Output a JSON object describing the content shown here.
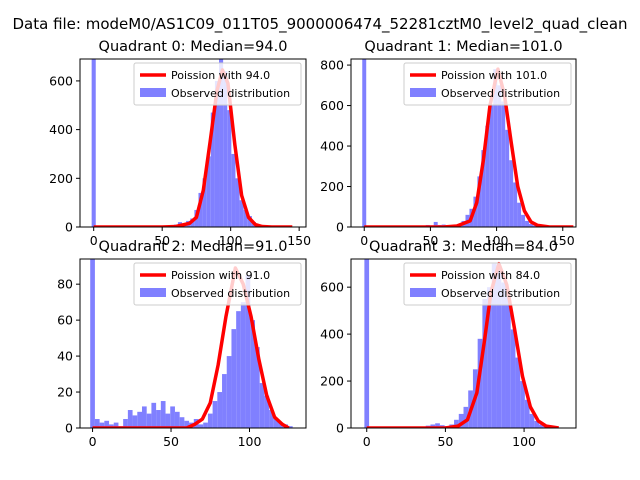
{
  "figure": {
    "suptitle": "Data file: modeM0/AS1C09_011T05_9000006474_52281cztM0_level2_quad_clean",
    "colors": {
      "hist": "#8080ff",
      "fit": "#ff0000",
      "frame": "#000000"
    }
  },
  "chart_data": [
    {
      "type": "bar",
      "title": "Quadrant 0: Median=94.0",
      "median": 94.0,
      "xlim": [
        -10,
        155
      ],
      "ylim": [
        0,
        690
      ],
      "xticks": [
        0,
        50,
        100,
        150
      ],
      "yticks": [
        0,
        200,
        400,
        600
      ],
      "legend": {
        "placement": "top-right",
        "fit_label": "Poission with 94.0",
        "hist_label": "Observed distribution"
      },
      "bin_width": 3,
      "hist": {
        "x": [
          0,
          51,
          54,
          57,
          60,
          63,
          66,
          69,
          72,
          75,
          78,
          81,
          84,
          87,
          90,
          93,
          96,
          99,
          102,
          105,
          108,
          111,
          114,
          117,
          120,
          123,
          126,
          129,
          132
        ],
        "values": [
          690,
          5,
          3,
          6,
          10,
          20,
          10,
          25,
          35,
          70,
          140,
          200,
          290,
          470,
          600,
          690,
          640,
          480,
          300,
          200,
          110,
          70,
          45,
          20,
          10,
          3,
          2,
          1,
          0
        ]
      },
      "fit": {
        "x": [
          0,
          50,
          60,
          70,
          75,
          80,
          85,
          90,
          94,
          98,
          103,
          108,
          113,
          118,
          123,
          130,
          145
        ],
        "values": [
          0,
          0,
          2,
          15,
          40,
          150,
          350,
          560,
          645,
          590,
          340,
          130,
          40,
          10,
          2,
          0,
          0
        ]
      }
    },
    {
      "type": "bar",
      "title": "Quadrant 1: Median=101.0",
      "median": 101.0,
      "xlim": [
        -10,
        160
      ],
      "ylim": [
        0,
        830
      ],
      "xticks": [
        0,
        50,
        100,
        150
      ],
      "yticks": [
        0,
        200,
        400,
        600,
        800
      ],
      "legend": {
        "placement": "top-right",
        "fit_label": "Poission with 101.0",
        "hist_label": "Observed distribution"
      },
      "bin_width": 3,
      "hist": {
        "x": [
          0,
          48,
          51,
          54,
          57,
          60,
          63,
          66,
          69,
          72,
          75,
          78,
          81,
          84,
          87,
          90,
          93,
          96,
          99,
          102,
          105,
          108,
          111,
          114,
          117,
          120,
          123,
          126,
          129,
          132,
          135,
          138
        ],
        "values": [
          830,
          10,
          8,
          25,
          10,
          12,
          5,
          8,
          10,
          15,
          30,
          60,
          90,
          150,
          250,
          380,
          500,
          600,
          780,
          700,
          620,
          480,
          330,
          220,
          120,
          60,
          30,
          15,
          8,
          12,
          5,
          2
        ]
      },
      "fit": {
        "x": [
          0,
          60,
          70,
          80,
          85,
          90,
          95,
          101,
          106,
          111,
          116,
          121,
          126,
          131,
          140,
          158
        ],
        "values": [
          0,
          0,
          5,
          30,
          120,
          330,
          600,
          780,
          650,
          420,
          200,
          80,
          25,
          8,
          0,
          0
        ]
      }
    },
    {
      "type": "bar",
      "title": "Quadrant 2: Median=91.0",
      "median": 91.0,
      "xlim": [
        -8,
        136
      ],
      "ylim": [
        0,
        94
      ],
      "xticks": [
        0,
        50,
        100
      ],
      "yticks": [
        0,
        20,
        40,
        60,
        80
      ],
      "legend": {
        "placement": "top-right",
        "fit_label": "Poission with 91.0",
        "hist_label": "Observed distribution"
      },
      "bin_width": 3,
      "hist": {
        "x": [
          0,
          3,
          6,
          9,
          12,
          15,
          18,
          21,
          24,
          27,
          30,
          33,
          36,
          39,
          42,
          45,
          48,
          51,
          54,
          57,
          60,
          63,
          66,
          69,
          72,
          75,
          78,
          81,
          84,
          87,
          90,
          93,
          96,
          99,
          102,
          105,
          108,
          111,
          114,
          117,
          120,
          123,
          126
        ],
        "values": [
          94,
          5,
          3,
          4,
          2,
          3,
          1,
          5,
          10,
          7,
          9,
          12,
          8,
          14,
          10,
          15,
          8,
          12,
          9,
          6,
          4,
          3,
          5,
          2,
          3,
          8,
          15,
          20,
          30,
          40,
          55,
          65,
          70,
          85,
          60,
          45,
          25,
          18,
          10,
          5,
          3,
          2,
          1
        ]
      },
      "fit": {
        "x": [
          0,
          60,
          65,
          70,
          75,
          80,
          85,
          91,
          96,
          101,
          106,
          111,
          116,
          121,
          125
        ],
        "values": [
          0,
          0,
          2,
          5,
          14,
          35,
          62,
          89,
          80,
          62,
          38,
          18,
          6,
          2,
          0
        ]
      }
    },
    {
      "type": "bar",
      "title": "Quadrant 3: Median=84.0",
      "median": 84.0,
      "xlim": [
        -10,
        133
      ],
      "ylim": [
        0,
        720
      ],
      "xticks": [
        0,
        50,
        100
      ],
      "yticks": [
        0,
        200,
        400,
        600
      ],
      "legend": {
        "placement": "top-right",
        "fit_label": "Poission with 84.0",
        "hist_label": "Observed distribution"
      },
      "bin_width": 3,
      "hist": {
        "x": [
          0,
          36,
          39,
          42,
          45,
          48,
          51,
          54,
          57,
          60,
          63,
          66,
          69,
          72,
          75,
          78,
          81,
          84,
          87,
          90,
          93,
          96,
          99,
          102,
          105,
          108,
          111,
          114,
          117,
          120
        ],
        "values": [
          720,
          5,
          10,
          15,
          20,
          12,
          8,
          15,
          35,
          60,
          90,
          160,
          250,
          380,
          550,
          600,
          700,
          680,
          620,
          560,
          420,
          300,
          200,
          120,
          60,
          30,
          15,
          8,
          3,
          1
        ]
      },
      "fit": {
        "x": [
          0,
          50,
          58,
          64,
          70,
          75,
          79,
          84,
          89,
          94,
          99,
          104,
          109,
          114,
          122
        ],
        "values": [
          0,
          0,
          8,
          35,
          150,
          380,
          580,
          700,
          610,
          420,
          220,
          90,
          30,
          8,
          0
        ]
      }
    }
  ]
}
